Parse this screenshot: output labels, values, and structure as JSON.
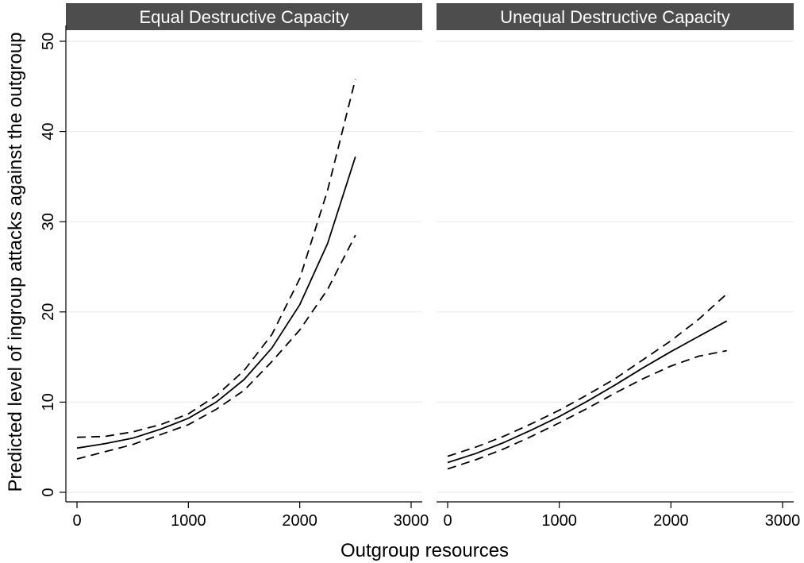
{
  "chart_data": {
    "type": "line",
    "xlabel": "Outgroup resources",
    "ylabel": "Predicted level of ingroup attacks against the outgroup",
    "xlim": [
      0,
      3000
    ],
    "ylim": [
      0,
      50
    ],
    "x_ticks": [
      0,
      1000,
      2000,
      3000
    ],
    "y_ticks": [
      0,
      10,
      20,
      30,
      40,
      50
    ],
    "grid": "horizontal",
    "panels": [
      {
        "title": "Equal Destructive Capacity",
        "x": [
          0,
          250,
          500,
          750,
          1000,
          1250,
          1500,
          1750,
          2000,
          2250,
          2500
        ],
        "series": [
          {
            "style": "solid",
            "values": [
              4.9,
              5.4,
              6.0,
              7.0,
              8.2,
              10.0,
              12.5,
              16.0,
              20.8,
              27.6,
              37.2
            ]
          },
          {
            "style": "dashed",
            "values": [
              6.1,
              6.2,
              6.7,
              7.5,
              8.7,
              10.7,
              13.5,
              17.5,
              23.7,
              33.5,
              45.8
            ]
          },
          {
            "style": "dashed",
            "values": [
              3.7,
              4.5,
              5.3,
              6.4,
              7.5,
              9.2,
              11.3,
              14.5,
              18.0,
              22.5,
              28.5
            ]
          }
        ]
      },
      {
        "title": "Unequal Destructive Capacity",
        "x": [
          0,
          250,
          500,
          750,
          1000,
          1250,
          1500,
          1750,
          2000,
          2250,
          2500
        ],
        "series": [
          {
            "style": "solid",
            "values": [
              3.3,
              4.3,
              5.5,
              6.9,
              8.4,
              10.1,
              11.9,
              13.8,
              15.6,
              17.3,
              19.0
            ]
          },
          {
            "style": "dashed",
            "values": [
              4.0,
              5.0,
              6.2,
              7.6,
              9.1,
              10.8,
              12.6,
              14.7,
              16.8,
              19.2,
              22.0
            ]
          },
          {
            "style": "dashed",
            "values": [
              2.6,
              3.6,
              4.8,
              6.2,
              7.7,
              9.3,
              11.0,
              12.6,
              14.0,
              15.1,
              15.7
            ]
          }
        ]
      }
    ]
  }
}
